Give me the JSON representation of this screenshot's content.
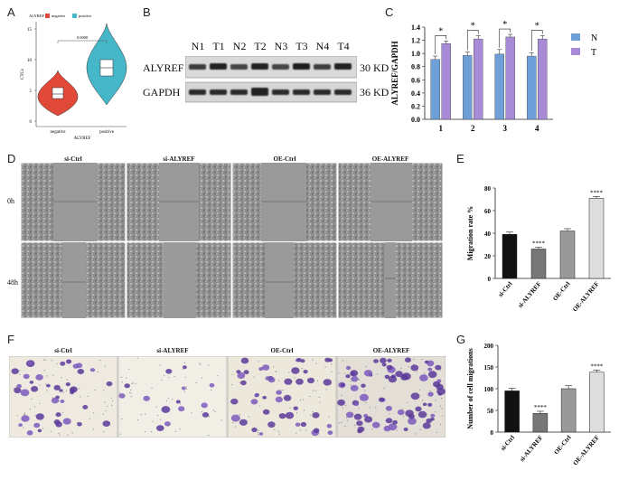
{
  "panels": {
    "a": "A",
    "b": "B",
    "c": "C",
    "d": "D",
    "e": "E",
    "f": "F",
    "g": "G"
  },
  "violin": {
    "legend_title": "ALYREF",
    "legend": [
      {
        "label": "negative",
        "color": "#e0483a"
      },
      {
        "label": "positive",
        "color": "#45b7c8"
      }
    ],
    "ylabel": "CTCs",
    "xlabel": "ALYREF",
    "categories": [
      "negative",
      "positive"
    ],
    "p_value": "0.0000",
    "yticks": [
      "0",
      "5",
      "10",
      "15"
    ]
  },
  "blot": {
    "lanes": [
      "N1",
      "T1",
      "N2",
      "T2",
      "N3",
      "T3",
      "N4",
      "T4"
    ],
    "rows": [
      {
        "protein": "ALYREF",
        "size": "30 KD"
      },
      {
        "protein": "GAPDH",
        "size": "36 KD"
      }
    ]
  },
  "wound": {
    "columns": [
      "si-Ctrl",
      "si-ALYREF",
      "OE-Ctrl",
      "OE-ALYREF"
    ],
    "rows": [
      "0h",
      "48h"
    ]
  },
  "transwell": {
    "columns": [
      "si-Ctrl",
      "si-ALYREF",
      "OE-Ctrl",
      "OE-ALYREF"
    ]
  },
  "colors": {
    "n_bar": "#6f9fd8",
    "t_bar": "#a88bd6",
    "bar_black": "#111111",
    "bar_dark_gray": "#777777",
    "bar_gray": "#999999",
    "bar_light": "#dddddd"
  },
  "chart_data": [
    {
      "id": "C",
      "type": "bar",
      "ylabel": "ALYREF/GAPDH",
      "categories": [
        "1",
        "2",
        "3",
        "4"
      ],
      "ylim": [
        0,
        1.4
      ],
      "yticks": [
        "0.0",
        "0.2",
        "0.4",
        "0.6",
        "0.8",
        "1.0",
        "1.2",
        "1.4"
      ],
      "series": [
        {
          "name": "N",
          "values": [
            0.91,
            0.97,
            0.99,
            0.96
          ],
          "errors": [
            0.05,
            0.05,
            0.07,
            0.05
          ]
        },
        {
          "name": "T",
          "values": [
            1.15,
            1.22,
            1.25,
            1.22
          ],
          "errors": [
            0.04,
            0.05,
            0.04,
            0.05
          ]
        }
      ],
      "annotations": [
        "*",
        "*",
        "*",
        "*"
      ]
    },
    {
      "id": "E",
      "type": "bar",
      "ylabel": "Migration rate %",
      "categories": [
        "si-Ctrl",
        "si-ALYREF",
        "OE-Ctrl",
        "OE-ALYREF"
      ],
      "ylim": [
        0,
        80
      ],
      "yticks": [
        "0",
        "20",
        "40",
        "60",
        "80"
      ],
      "values": [
        39,
        26,
        42,
        71
      ],
      "errors": [
        2,
        1.5,
        2,
        1.5
      ],
      "annotations": [
        "",
        "****",
        "",
        "****"
      ]
    },
    {
      "id": "G",
      "type": "bar",
      "ylabel": "Number of cell migrations",
      "categories": [
        "si-Ctrl",
        "si-ALYREF",
        "OE-Ctrl",
        "OE-ALYREF"
      ],
      "ylim": [
        0,
        200
      ],
      "yticks": [
        "0",
        "50",
        "100",
        "150",
        "200"
      ],
      "values": [
        95,
        43,
        100,
        138
      ],
      "errors": [
        6,
        5,
        7,
        5
      ],
      "annotations": [
        "",
        "****",
        "",
        "****"
      ]
    }
  ]
}
